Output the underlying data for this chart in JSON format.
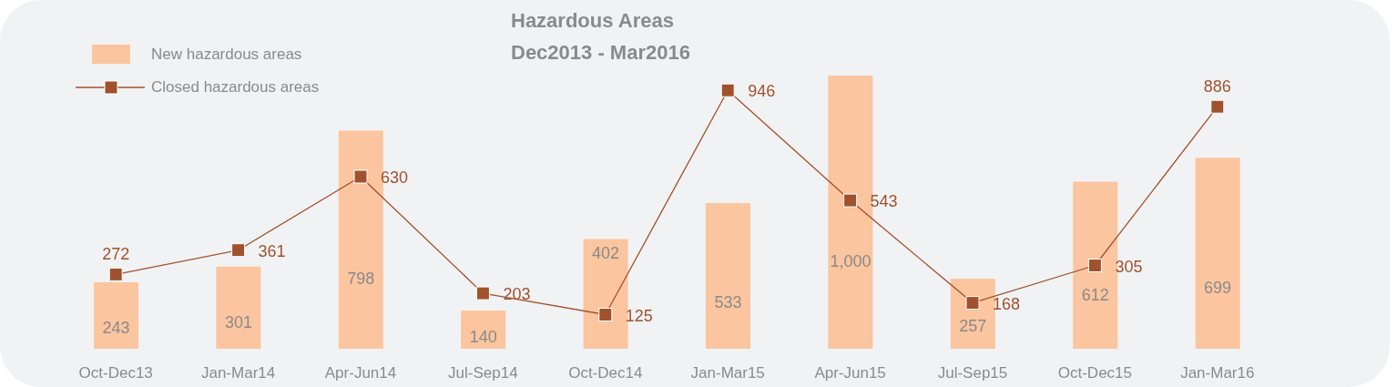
{
  "chart_data": {
    "type": "bar",
    "title": "Hazardous Areas",
    "subtitle": "Dec2013 - Mar2016",
    "categories": [
      "Oct-Dec13",
      "Jan-Mar14",
      "Apr-Jun14",
      "Jul-Sep14",
      "Oct-Dec14",
      "Jan-Mar15",
      "Apr-Jun15",
      "Jul-Sep15",
      "Oct-Dec15",
      "Jan-Mar16"
    ],
    "series": [
      {
        "name": "New hazardous areas",
        "color": "#fbc59f",
        "values": [
          243,
          301,
          798,
          140,
          402,
          533,
          1000,
          257,
          612,
          699
        ],
        "value_labels": [
          "243",
          "301",
          "798",
          "140",
          "402",
          "533",
          "1,000",
          "257",
          "612",
          "699"
        ]
      },
      {
        "name": "Closed hazardous areas",
        "type": "line",
        "color": "#a0522d",
        "values": [
          272,
          361,
          630,
          203,
          125,
          946,
          543,
          168,
          305,
          886
        ],
        "value_labels": [
          "272",
          "361",
          "630",
          "203",
          "125",
          "946",
          "543",
          "168",
          "305",
          "886"
        ]
      }
    ],
    "marker": "square",
    "legend": "top left",
    "tick_labels": "x"
  }
}
